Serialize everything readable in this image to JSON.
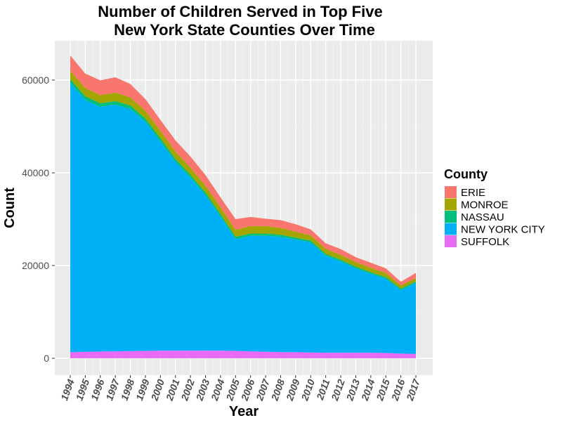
{
  "chart_data": {
    "type": "area",
    "stacked": true,
    "title_lines": [
      "Number of Children Served in Top Five",
      "New York State Counties Over Time"
    ],
    "xlabel": "Year",
    "ylabel": "Count",
    "ylim": [
      0,
      68000
    ],
    "yticks": [
      0,
      20000,
      40000,
      60000
    ],
    "ytick_labels": [
      "0",
      "20000",
      "40000",
      "60000"
    ],
    "x": [
      1994,
      1995,
      1996,
      1997,
      1998,
      1999,
      2000,
      2001,
      2002,
      2003,
      2004,
      2005,
      2006,
      2007,
      2008,
      2009,
      2010,
      2011,
      2012,
      2013,
      2014,
      2015,
      2016,
      2017
    ],
    "x_labels": [
      "1994",
      "1995",
      "1996",
      "1997",
      "1998",
      "1999",
      "2000",
      "2001",
      "2002",
      "2003",
      "2004",
      "2005",
      "2006",
      "2007",
      "2008",
      "2009",
      "2010",
      "2011",
      "2012",
      "2013",
      "2014",
      "2015",
      "2016",
      "2017"
    ],
    "grid": true,
    "legend": {
      "title": "County",
      "position": "right",
      "entries": [
        "ERIE",
        "MONROE",
        "NASSAU",
        "NEW YORK CITY",
        "SUFFOLK"
      ]
    },
    "series": [
      {
        "name": "SUFFOLK",
        "color": "#E76BF3",
        "values": [
          1300,
          1400,
          1450,
          1500,
          1550,
          1600,
          1650,
          1650,
          1650,
          1650,
          1650,
          1600,
          1500,
          1400,
          1350,
          1300,
          1250,
          1200,
          1200,
          1200,
          1200,
          1150,
          1000,
          950
        ]
      },
      {
        "name": "NEW YORK CITY",
        "color": "#00B0F6",
        "values": [
          58100,
          54300,
          52800,
          53200,
          52200,
          49400,
          45100,
          40700,
          37300,
          33500,
          28900,
          24100,
          24900,
          25000,
          24850,
          24300,
          23750,
          20900,
          19700,
          18200,
          17000,
          16000,
          13700,
          15350
        ]
      },
      {
        "name": "NASSAU",
        "color": "#00BF7D",
        "values": [
          800,
          800,
          750,
          750,
          750,
          700,
          700,
          650,
          600,
          600,
          550,
          500,
          500,
          500,
          450,
          400,
          400,
          400,
          350,
          350,
          350,
          350,
          300,
          300
        ]
      },
      {
        "name": "MONROE",
        "color": "#A3A500",
        "values": [
          1800,
          1800,
          1750,
          1850,
          1750,
          1700,
          1650,
          1600,
          1550,
          1500,
          1500,
          1500,
          1600,
          1600,
          1450,
          1300,
          1100,
          1100,
          1050,
          1000,
          950,
          900,
          700,
          700
        ]
      },
      {
        "name": "ERIE",
        "color": "#F8766D",
        "values": [
          3300,
          3100,
          3200,
          3300,
          2900,
          2500,
          2300,
          2400,
          2400,
          2250,
          2100,
          2300,
          2000,
          1600,
          1700,
          1600,
          1300,
          1200,
          1250,
          1050,
          1100,
          1000,
          800,
          1100
        ]
      }
    ]
  }
}
